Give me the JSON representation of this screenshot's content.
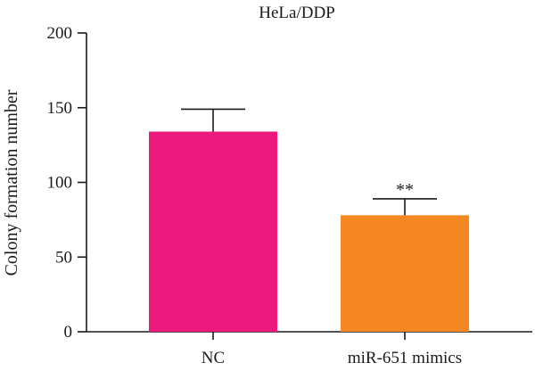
{
  "chart_data": {
    "type": "bar",
    "title": "HeLa/DDP",
    "xlabel": "",
    "ylabel": "Colony formation number",
    "categories": [
      "NC",
      "miR-651 mimics"
    ],
    "values": [
      134,
      78
    ],
    "errors": [
      15,
      11
    ],
    "colors": [
      "#ec1a7e",
      "#f58723"
    ],
    "annotations": [
      "",
      "**"
    ],
    "ylim": [
      0,
      200
    ],
    "yticks": [
      0,
      50,
      100,
      150,
      200
    ],
    "grid": false
  }
}
